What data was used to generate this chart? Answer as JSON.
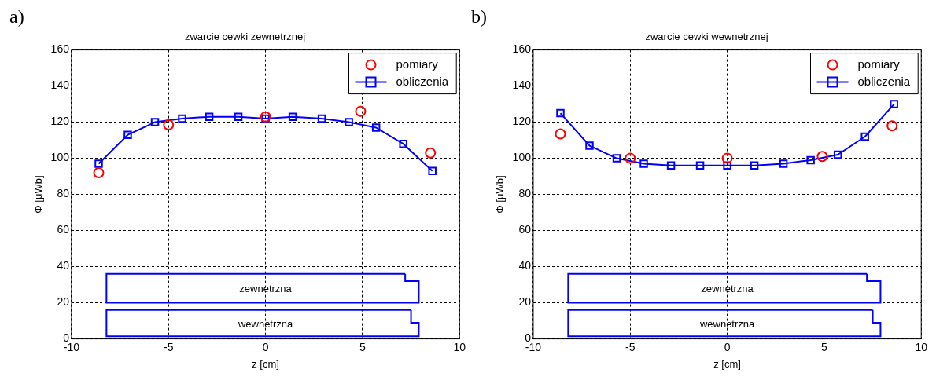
{
  "chart_data": [
    {
      "type": "line",
      "title": "zwarcie cewki zewnetrznej",
      "xlabel": "z [cm]",
      "ylabel": "Φ [μWb]",
      "annotations": [
        "a)",
        "zewnetrzna",
        "wewnetrzna"
      ],
      "xlim": [
        -10,
        10
      ],
      "xticks": [
        -10,
        -5,
        0,
        5,
        10
      ],
      "ylim": [
        0,
        160
      ],
      "yticks": [
        0,
        20,
        40,
        60,
        80,
        100,
        120,
        140,
        160
      ],
      "grid": true,
      "legend": "top right",
      "series": [
        {
          "name": "pomiary",
          "type": "scatter",
          "marker": "circle",
          "color": "#ff0000",
          "x": [
            -8.6,
            -5.0,
            0,
            4.9,
            8.5
          ],
          "values": [
            92,
            118.5,
            123,
            126,
            103
          ]
        },
        {
          "name": "obliczenia",
          "type": "line",
          "marker": "square",
          "color": "#0000ff",
          "x": [
            -8.6,
            -7.1,
            -5.7,
            -4.3,
            -2.9,
            -1.4,
            0,
            1.4,
            2.9,
            4.3,
            5.7,
            7.1,
            8.6
          ],
          "values": [
            97,
            113,
            120,
            122,
            123,
            123,
            122,
            123,
            122,
            120,
            117,
            108,
            93
          ]
        }
      ]
    },
    {
      "type": "line",
      "title": "zwarcie cewki wewnetrznej",
      "xlabel": "z [cm]",
      "ylabel": "Φ [μWb]",
      "annotations": [
        "b)",
        "zewnetrzna",
        "wewnetrzna"
      ],
      "xlim": [
        -10,
        10
      ],
      "xticks": [
        -10,
        -5,
        0,
        5,
        10
      ],
      "ylim": [
        0,
        160
      ],
      "yticks": [
        0,
        20,
        40,
        60,
        80,
        100,
        120,
        140,
        160
      ],
      "grid": true,
      "legend": "top right",
      "series": [
        {
          "name": "pomiary",
          "type": "scatter",
          "marker": "circle",
          "color": "#ff0000",
          "x": [
            -8.6,
            -5.0,
            0,
            4.9,
            8.5
          ],
          "values": [
            113.5,
            100,
            100,
            101,
            118
          ]
        },
        {
          "name": "obliczenia",
          "type": "line",
          "marker": "square",
          "color": "#0000ff",
          "x": [
            -8.6,
            -7.1,
            -5.7,
            -4.3,
            -2.9,
            -1.4,
            0,
            1.4,
            2.9,
            4.3,
            5.7,
            7.1,
            8.6
          ],
          "values": [
            125,
            107,
            100,
            97,
            96,
            96,
            96,
            96,
            97,
            99,
            102,
            112,
            130
          ]
        }
      ]
    }
  ]
}
